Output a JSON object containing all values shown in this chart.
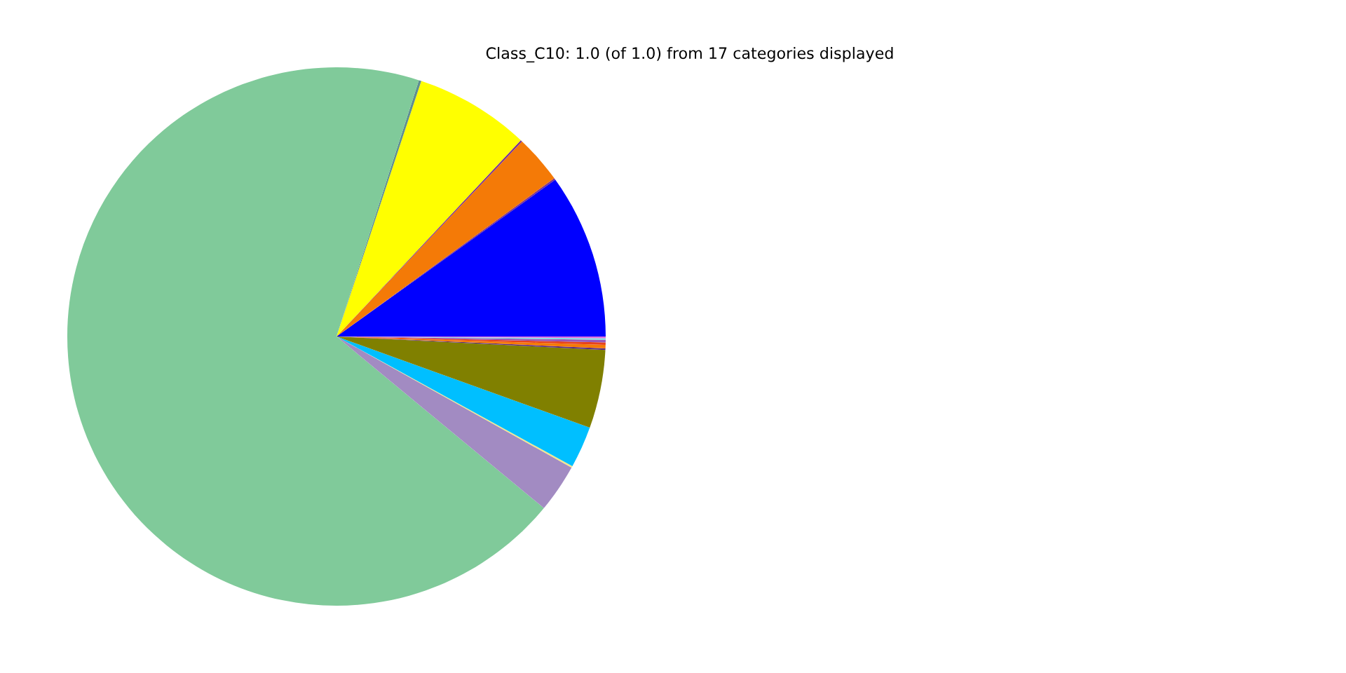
{
  "chart_data": {
    "type": "pie",
    "title": "Class_C10: 1.0 (of 1.0) from 17 categories displayed",
    "categories": [
      null,
      null,
      null,
      null,
      null,
      null,
      null,
      null,
      null,
      null,
      null,
      null,
      null,
      null,
      null,
      null,
      null
    ],
    "values": [
      9.9,
      0.1,
      2.9,
      0.1,
      6.9,
      0.15,
      68.95,
      2.9,
      0.1,
      2.5,
      4.7,
      0.1,
      0.2,
      0.15,
      0.15,
      0.1,
      0.1
    ],
    "colors": [
      "#0000ff",
      "#7b3294",
      "#f47a07",
      "#7b3294",
      "#ffff00",
      "#5f8f8f",
      "#80ca9a",
      "#a28bc2",
      "#f0e68c",
      "#00bfff",
      "#808000",
      "#5b2c83",
      "#f47a07",
      "#e8431a",
      "#9b59b6",
      "#80e0e0",
      "#e070e0"
    ]
  }
}
